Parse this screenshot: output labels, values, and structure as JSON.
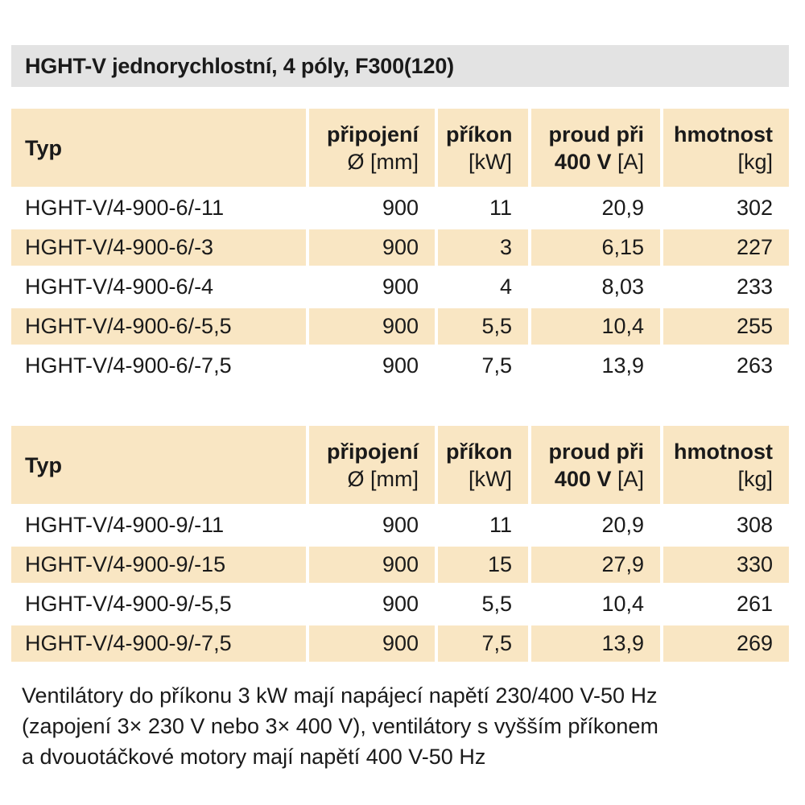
{
  "title": "HGHT-V jednorychlostní, 4 póly, F300(120)",
  "headers": {
    "typ": "Typ",
    "pripojeni_l1": "připojení",
    "pripojeni_l2": "Ø [mm]",
    "prikon_l1": "příkon",
    "prikon_l2": "[kW]",
    "proud_l1": "proud při",
    "proud_l2_bold": "400 V",
    "proud_l2_unit": " [A]",
    "hmotnost_l1": "hmotnost",
    "hmotnost_l2": "[kg]"
  },
  "table1": {
    "rows": [
      {
        "typ": "HGHT-V/4-900-6/-11",
        "pripojeni": "900",
        "prikon": "11",
        "proud": "20,9",
        "hmotnost": "302"
      },
      {
        "typ": "HGHT-V/4-900-6/-3",
        "pripojeni": "900",
        "prikon": "3",
        "proud": "6,15",
        "hmotnost": "227"
      },
      {
        "typ": "HGHT-V/4-900-6/-4",
        "pripojeni": "900",
        "prikon": "4",
        "proud": "8,03",
        "hmotnost": "233"
      },
      {
        "typ": "HGHT-V/4-900-6/-5,5",
        "pripojeni": "900",
        "prikon": "5,5",
        "proud": "10,4",
        "hmotnost": "255"
      },
      {
        "typ": "HGHT-V/4-900-6/-7,5",
        "pripojeni": "900",
        "prikon": "7,5",
        "proud": "13,9",
        "hmotnost": "263"
      }
    ]
  },
  "table2": {
    "rows": [
      {
        "typ": "HGHT-V/4-900-9/-11",
        "pripojeni": "900",
        "prikon": "11",
        "proud": "20,9",
        "hmotnost": "308"
      },
      {
        "typ": "HGHT-V/4-900-9/-15",
        "pripojeni": "900",
        "prikon": "15",
        "proud": "27,9",
        "hmotnost": "330"
      },
      {
        "typ": "HGHT-V/4-900-9/-5,5",
        "pripojeni": "900",
        "prikon": "5,5",
        "proud": "10,4",
        "hmotnost": "261"
      },
      {
        "typ": "HGHT-V/4-900-9/-7,5",
        "pripojeni": "900",
        "prikon": "7,5",
        "proud": "13,9",
        "hmotnost": "269"
      }
    ]
  },
  "footnote": {
    "line1": "Ventilátory do příkonu 3 kW mají napájecí napětí 230/400 V-50 Hz",
    "line2": "(zapojení 3× 230 V nebo 3× 400 V), ventilátory s vyšším příkonem",
    "line3": "a dvouotáčkové motory mají napětí 400 V-50 Hz"
  },
  "colors": {
    "header_bg": "#f9e6c3",
    "title_bg": "#e3e3e3"
  }
}
